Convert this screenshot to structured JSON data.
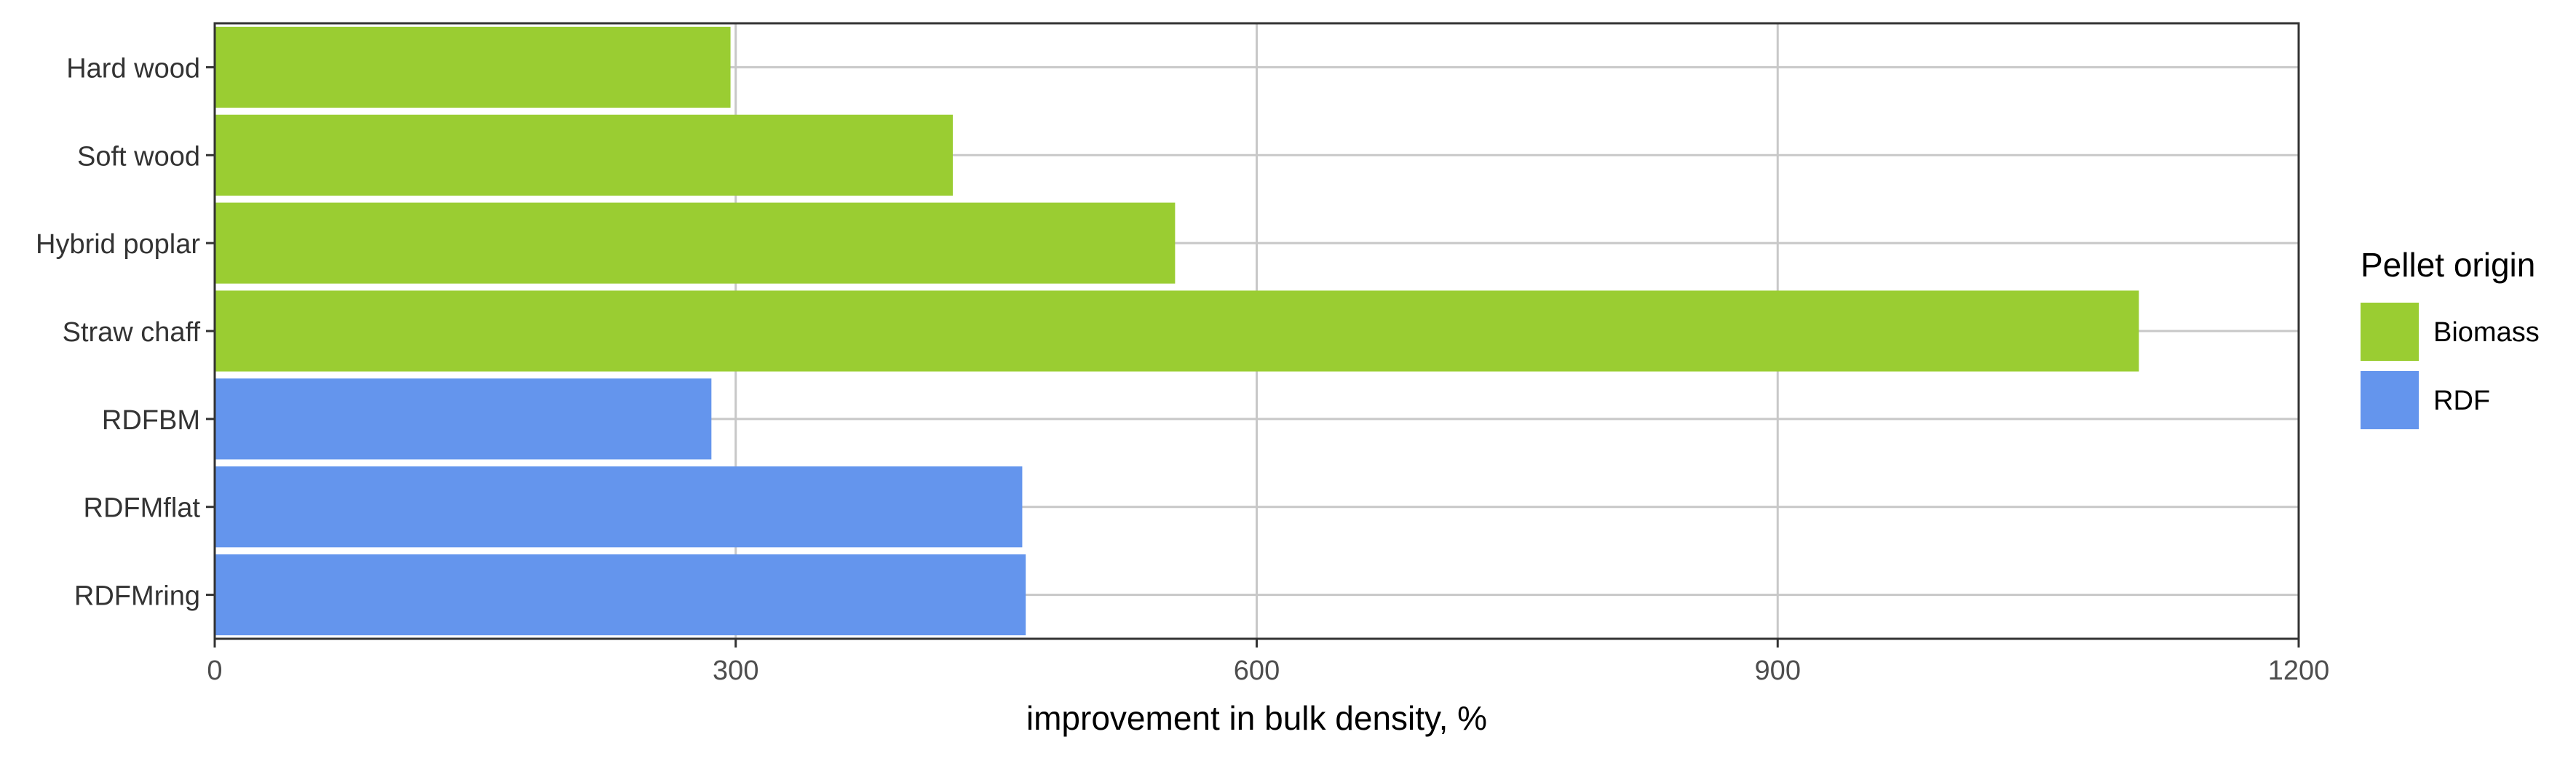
{
  "chart_data": {
    "type": "bar",
    "orientation": "horizontal",
    "title": "",
    "xlabel": "improvement in bulk density, %",
    "ylabel": "",
    "xlim": [
      0,
      1200
    ],
    "xticks": [
      0,
      300,
      600,
      900,
      1200
    ],
    "grid": true,
    "legend_position": "right",
    "categories": [
      "Hard wood",
      "Soft wood",
      "Hybrid poplar",
      "Straw chaff",
      "RDFBM",
      "RDFMflat",
      "RDFMring"
    ],
    "values": [
      297,
      425,
      553,
      1108,
      286,
      465,
      467
    ],
    "groups": [
      "Biomass",
      "Biomass",
      "Biomass",
      "Biomass",
      "RDF",
      "RDF",
      "RDF"
    ],
    "legend": {
      "title": "Pellet origin",
      "entries": [
        {
          "name": "Biomass",
          "color": "#9ACD32"
        },
        {
          "name": "RDF",
          "color": "#6495ED"
        }
      ]
    }
  }
}
